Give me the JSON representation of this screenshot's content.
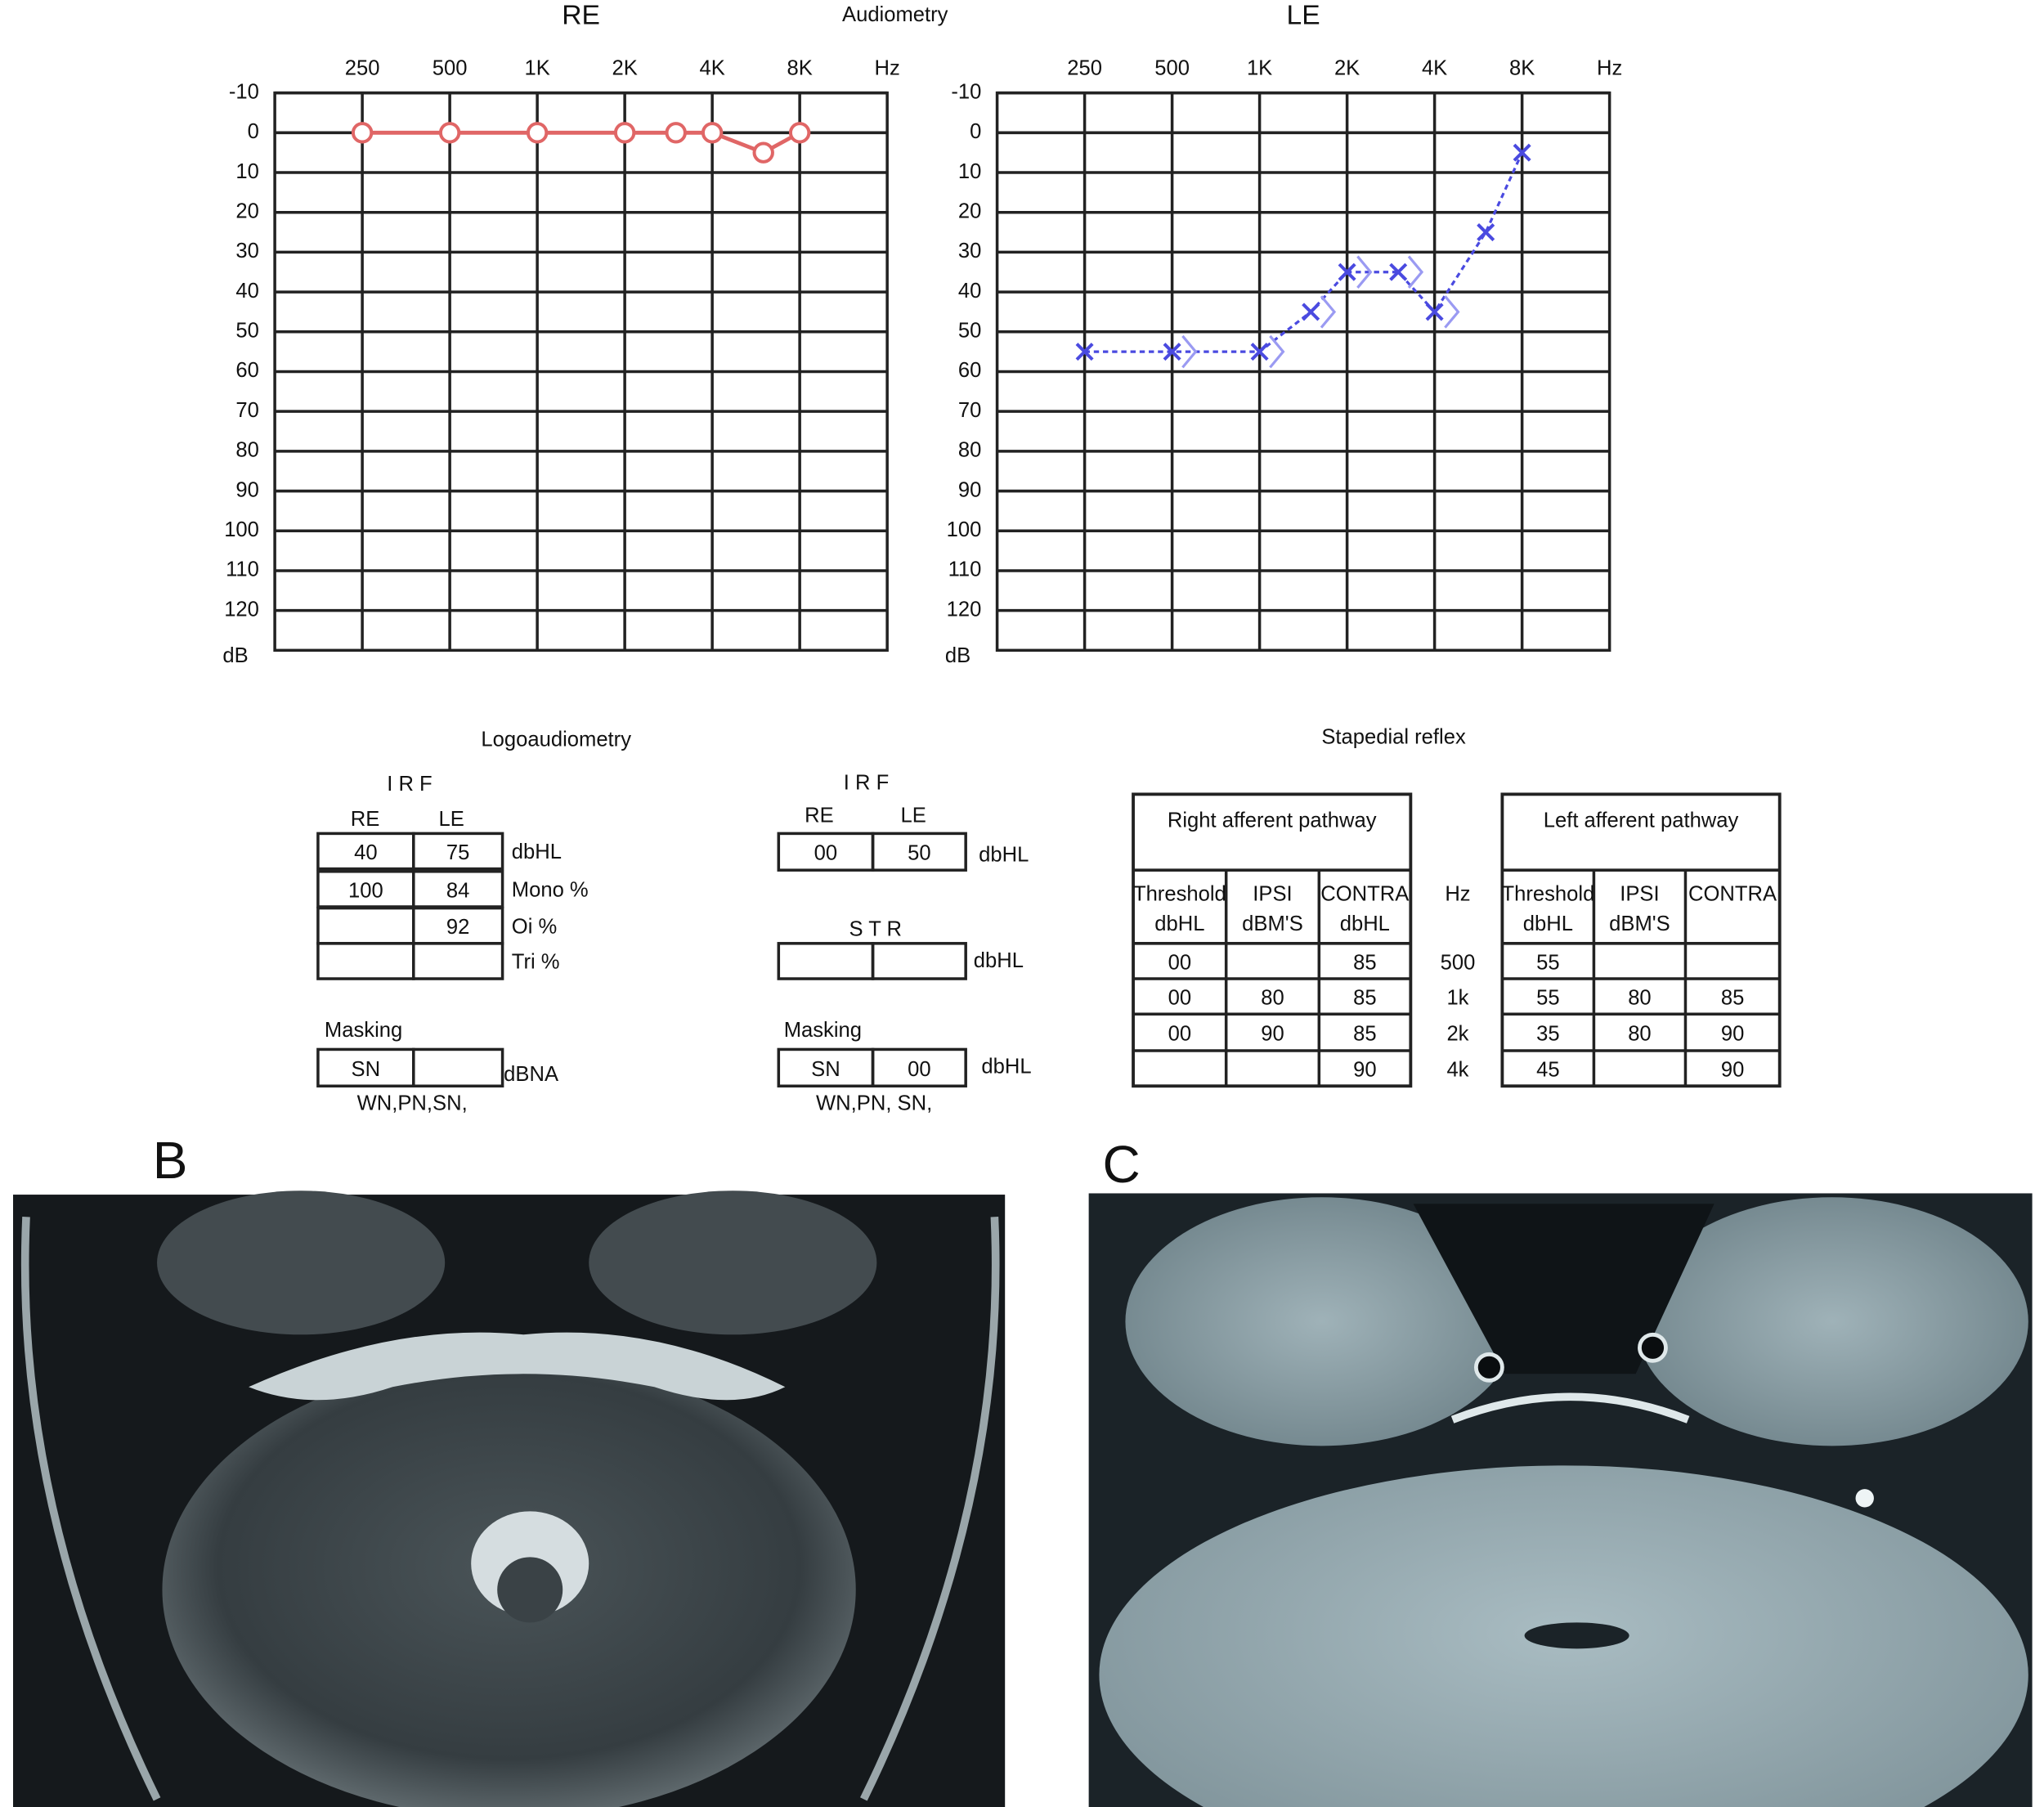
{
  "heading": "Audiometry",
  "chart_data": [
    {
      "type": "line",
      "title": "RE",
      "x_label": "Hz",
      "y_label": "dB",
      "xscale": "log",
      "xlim": [
        125,
        16000
      ],
      "xticks": [
        250,
        500,
        {
          "value": 1000,
          "label": "1K"
        },
        {
          "value": 2000,
          "label": "2K"
        },
        {
          "value": 4000,
          "label": "4K"
        },
        {
          "value": 8000,
          "label": "8K"
        }
      ],
      "ylim": [
        130,
        -10
      ],
      "yticks": [
        -10,
        0,
        10,
        20,
        30,
        40,
        50,
        60,
        70,
        80,
        90,
        100,
        110,
        120
      ],
      "grid": true,
      "x": [
        250,
        500,
        1000,
        2000,
        3000,
        4000,
        6000,
        8000
      ],
      "series": [
        {
          "color": "#e06666",
          "marker": "circle",
          "line": "solid",
          "values": [
            0,
            0,
            0,
            0,
            0,
            0,
            5,
            0
          ]
        }
      ]
    },
    {
      "type": "line",
      "title": "LE",
      "x_label": "Hz",
      "y_label": "dB",
      "xscale": "log",
      "xlim": [
        125,
        16000
      ],
      "xticks": [
        250,
        500,
        {
          "value": 1000,
          "label": "1K"
        },
        {
          "value": 2000,
          "label": "2K"
        },
        {
          "value": 4000,
          "label": "4K"
        },
        {
          "value": 8000,
          "label": "8K"
        }
      ],
      "ylim": [
        130,
        -10
      ],
      "yticks": [
        -10,
        0,
        10,
        20,
        30,
        40,
        50,
        60,
        70,
        80,
        90,
        100,
        110,
        120
      ],
      "grid": true,
      "x": [
        250,
        500,
        1000,
        1500,
        2000,
        3000,
        4000,
        6000,
        8000
      ],
      "series": [
        {
          "color": "#4a4ae0",
          "marker": "x",
          "line": "dashed",
          "values": [
            55,
            55,
            55,
            45,
            35,
            35,
            45,
            25,
            5
          ]
        },
        {
          "color": "#9a9af2",
          "marker": "bracket",
          "line": "none",
          "values": [
            null,
            55,
            55,
            45,
            35,
            35,
            45,
            null,
            null
          ]
        }
      ]
    }
  ],
  "logoaudiometry": {
    "title": "Logoaudiometry",
    "left": {
      "title": "I R F",
      "columns": [
        "RE",
        "LE"
      ],
      "rows": [
        {
          "cells": [
            "40",
            "75"
          ],
          "unit": "dbHL"
        },
        {
          "cells": [
            "100",
            "84"
          ],
          "unit": "Mono %"
        },
        {
          "cells": [
            null,
            "92"
          ],
          "unit": "Oi %"
        },
        {
          "cells": [
            null,
            null
          ],
          "unit": "Tri %"
        }
      ],
      "masking": {
        "title": "Masking",
        "cells": [
          "SN",
          null
        ],
        "unit": "dBNA",
        "note": "WN,PN,SN,"
      }
    },
    "right": {
      "title": "I R F",
      "columns": [
        "RE",
        "LE"
      ],
      "rows": [
        {
          "cells": [
            "00",
            "50"
          ],
          "unit": "dbHL"
        }
      ],
      "str": {
        "title": "S T R",
        "cells": [
          null,
          null
        ],
        "unit": "dbHL"
      },
      "masking": {
        "title": "Masking",
        "cells": [
          "SN",
          "00"
        ],
        "unit": "dbHL",
        "note": "WN,PN, SN,"
      }
    }
  },
  "stapedial_reflex": {
    "title": "Stapedial reflex",
    "hz_label": "Hz",
    "frequencies": [
      "500",
      "1k",
      "2k",
      "4k"
    ],
    "right": {
      "title": "Right afferent pathway",
      "columns": [
        {
          "name": "Threshold",
          "unit": "dbHL"
        },
        {
          "name": "IPSI",
          "unit": "dBM'S"
        },
        {
          "name": "CONTRA",
          "unit": "dbHL"
        }
      ],
      "rows": [
        [
          "00",
          null,
          "85"
        ],
        [
          "00",
          "80",
          "85"
        ],
        [
          "00",
          "90",
          "85"
        ],
        [
          null,
          null,
          "90"
        ]
      ]
    },
    "left": {
      "title": "Left afferent pathway",
      "columns": [
        {
          "name": "Threshold",
          "unit": "dbHL"
        },
        {
          "name": "IPSI",
          "unit": "dBM'S"
        },
        {
          "name": "CONTRA"
        }
      ],
      "rows": [
        [
          "55",
          null,
          null
        ],
        [
          "55",
          "80",
          "85"
        ],
        [
          "35",
          "80",
          "90"
        ],
        [
          "45",
          null,
          "90"
        ]
      ]
    }
  },
  "panels": [
    "B",
    "C"
  ]
}
